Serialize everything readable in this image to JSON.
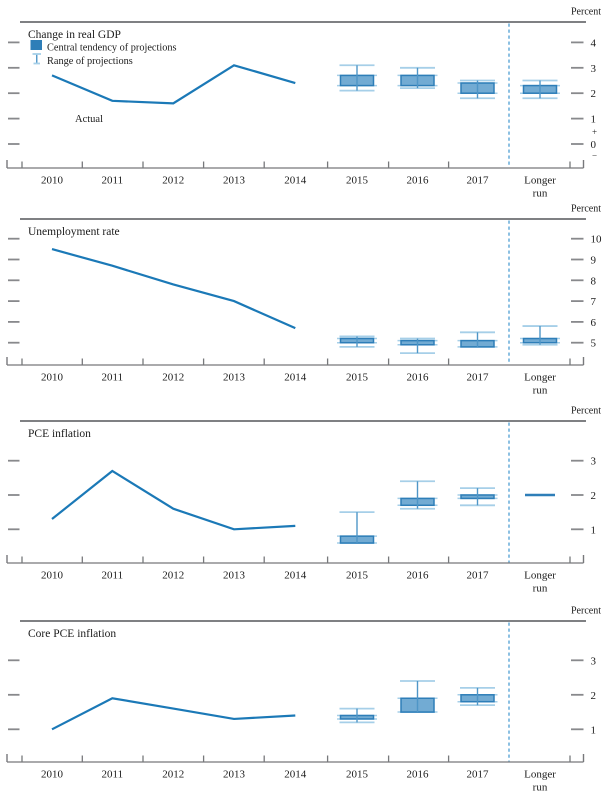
{
  "figure": {
    "unit_label": "Percent",
    "actual_label": "Actual",
    "longer_run_label": {
      "line1": "Longer",
      "line2": "run"
    },
    "legend": [
      {
        "symbol": "central-tendency-swatch",
        "label": "Central tendency of projections"
      },
      {
        "symbol": "range-whisker",
        "label": "Range of projections"
      }
    ],
    "x_axis_years": [
      "2010",
      "2011",
      "2012",
      "2013",
      "2014",
      "2015",
      "2016",
      "2017"
    ]
  },
  "colors": {
    "actual_line": "#1b79b7",
    "box_fill": "#72abd3",
    "box_border": "#2e7eb8",
    "legend_swatch": "#2e7eb8",
    "range_line": "#4f96c7",
    "range_cap": "#a6cfe8",
    "divider": "#66abd9",
    "frame": "#55565a",
    "axis": "#77787b",
    "tick_dash": "#88898c",
    "text": "#1c1c1c"
  },
  "chart_data": [
    {
      "type": "line+boxplot",
      "title": "Change in real GDP",
      "unit": "Percent",
      "y_ticks": [
        4,
        3,
        2,
        1,
        0
      ],
      "shows_plus_minus_zero": true,
      "legend_position": "top-left",
      "actual": {
        "years": [
          2010,
          2011,
          2012,
          2013,
          2014
        ],
        "values": [
          2.7,
          1.7,
          1.6,
          3.1,
          2.4
        ]
      },
      "projections": [
        {
          "period": "2015",
          "central_tendency": [
            2.3,
            2.7
          ],
          "range": [
            2.1,
            3.1
          ]
        },
        {
          "period": "2016",
          "central_tendency": [
            2.3,
            2.7
          ],
          "range": [
            2.2,
            3.0
          ]
        },
        {
          "period": "2017",
          "central_tendency": [
            2.0,
            2.4
          ],
          "range": [
            1.8,
            2.5
          ]
        },
        {
          "period": "Longer run",
          "central_tendency": [
            2.0,
            2.3
          ],
          "range": [
            1.8,
            2.5
          ]
        }
      ]
    },
    {
      "type": "line+boxplot",
      "title": "Unemployment rate",
      "unit": "Percent",
      "y_ticks": [
        10,
        9,
        8,
        7,
        6,
        5
      ],
      "shows_plus_minus_zero": false,
      "actual": {
        "years": [
          2010,
          2011,
          2012,
          2013,
          2014
        ],
        "values": [
          9.5,
          8.7,
          7.8,
          7.0,
          5.7
        ]
      },
      "projections": [
        {
          "period": "2015",
          "central_tendency": [
            5.0,
            5.2
          ],
          "range": [
            4.8,
            5.3
          ]
        },
        {
          "period": "2016",
          "central_tendency": [
            4.9,
            5.1
          ],
          "range": [
            4.5,
            5.2
          ]
        },
        {
          "period": "2017",
          "central_tendency": [
            4.8,
            5.1
          ],
          "range": [
            4.8,
            5.5
          ]
        },
        {
          "period": "Longer run",
          "central_tendency": [
            5.0,
            5.2
          ],
          "range": [
            4.9,
            5.8
          ]
        }
      ]
    },
    {
      "type": "line+boxplot",
      "title": "PCE inflation",
      "unit": "Percent",
      "y_ticks": [
        3,
        2,
        1
      ],
      "shows_plus_minus_zero": false,
      "actual": {
        "years": [
          2010,
          2011,
          2012,
          2013,
          2014
        ],
        "values": [
          1.3,
          2.7,
          1.6,
          1.0,
          1.1
        ]
      },
      "projections": [
        {
          "period": "2015",
          "central_tendency": [
            0.6,
            0.8
          ],
          "range": [
            0.6,
            1.5
          ]
        },
        {
          "period": "2016",
          "central_tendency": [
            1.7,
            1.9
          ],
          "range": [
            1.6,
            2.4
          ]
        },
        {
          "period": "2017",
          "central_tendency": [
            1.9,
            2.0
          ],
          "range": [
            1.7,
            2.2
          ]
        },
        {
          "period": "Longer run",
          "point": 2.0
        }
      ]
    },
    {
      "type": "line+boxplot",
      "title": "Core PCE inflation",
      "unit": "Percent",
      "y_ticks": [
        3,
        2,
        1
      ],
      "shows_plus_minus_zero": false,
      "actual": {
        "years": [
          2010,
          2011,
          2012,
          2013,
          2014
        ],
        "values": [
          1.0,
          1.9,
          1.6,
          1.3,
          1.4
        ]
      },
      "projections": [
        {
          "period": "2015",
          "central_tendency": [
            1.3,
            1.4
          ],
          "range": [
            1.2,
            1.6
          ]
        },
        {
          "period": "2016",
          "central_tendency": [
            1.5,
            1.9
          ],
          "range": [
            1.5,
            2.4
          ]
        },
        {
          "period": "2017",
          "central_tendency": [
            1.8,
            2.0
          ],
          "range": [
            1.7,
            2.2
          ]
        }
      ]
    }
  ]
}
